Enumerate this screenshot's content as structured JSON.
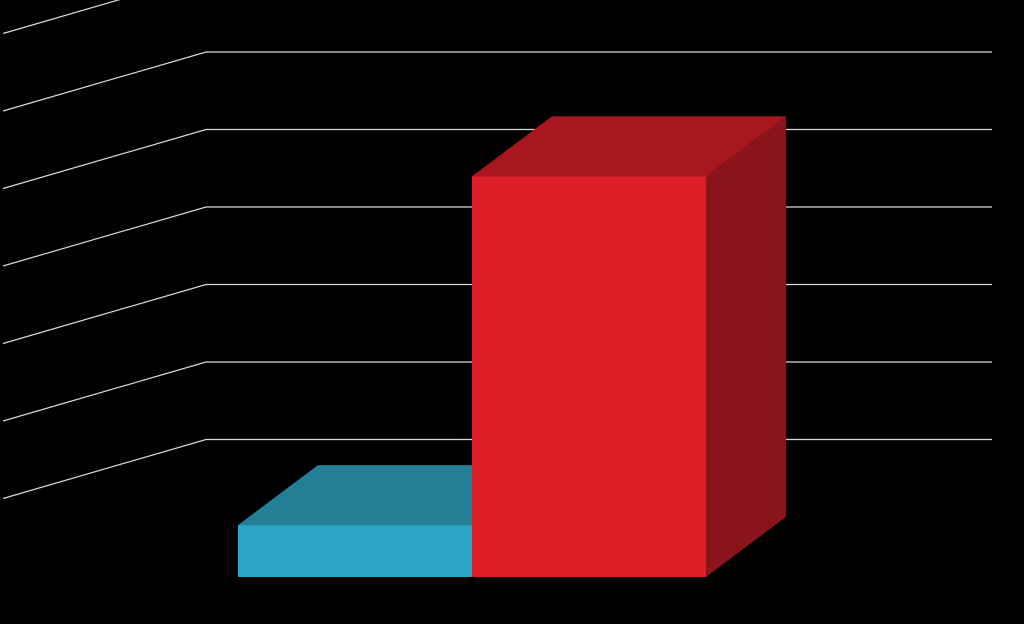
{
  "chart_data": {
    "type": "bar",
    "style": "3d",
    "categories": [
      "",
      ""
    ],
    "series": [
      {
        "values": [
          0.67,
          5.17
        ]
      }
    ],
    "ylim": [
      0,
      7
    ],
    "grid": true,
    "legend": "none",
    "colors": {
      "background": "#000000",
      "grid": "#d9d9d9",
      "bars": [
        {
          "front": "#2ba5c4",
          "top": "#237f95",
          "side": "#1c6a7d"
        },
        {
          "front": "#dd1f28",
          "top": "#a8161e",
          "side": "#8a1419"
        }
      ]
    }
  }
}
